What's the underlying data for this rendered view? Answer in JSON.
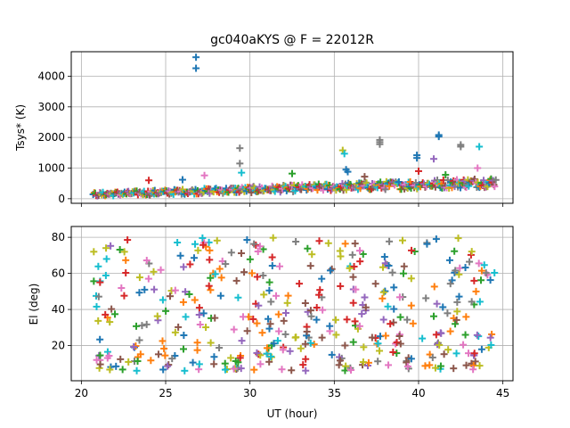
{
  "chart_data": [
    {
      "type": "scatter",
      "title": "gc040aKYS @ F = 22012R",
      "xlabel": "",
      "ylabel": "Tsys* (K)",
      "xlim": [
        19.4,
        45.6
      ],
      "ylim": [
        -150,
        4800
      ],
      "xticks": [
        20,
        25,
        30,
        35,
        40,
        45
      ],
      "yticks": [
        0,
        1000,
        2000,
        3000,
        4000
      ],
      "xtick_labels_visible": false,
      "grid": true,
      "marker": "plus",
      "spikes": [
        {
          "x": 26.8,
          "y": 4620,
          "color": "#1f77b4"
        },
        {
          "x": 26.8,
          "y": 4260,
          "color": "#1f77b4"
        },
        {
          "x": 29.4,
          "y": 1650,
          "color": "#7f7f7f"
        },
        {
          "x": 29.4,
          "y": 1150,
          "color": "#7f7f7f"
        },
        {
          "x": 29.5,
          "y": 850,
          "color": "#17becf"
        },
        {
          "x": 35.5,
          "y": 1580,
          "color": "#bcbd22"
        },
        {
          "x": 35.6,
          "y": 1470,
          "color": "#17becf"
        },
        {
          "x": 35.7,
          "y": 950,
          "color": "#1f77b4"
        },
        {
          "x": 35.8,
          "y": 880,
          "color": "#1f77b4"
        },
        {
          "x": 37.7,
          "y": 1920,
          "color": "#7f7f7f"
        },
        {
          "x": 37.7,
          "y": 1850,
          "color": "#7f7f7f"
        },
        {
          "x": 37.7,
          "y": 1780,
          "color": "#7f7f7f"
        },
        {
          "x": 39.9,
          "y": 1420,
          "color": "#1f77b4"
        },
        {
          "x": 39.9,
          "y": 1330,
          "color": "#1f77b4"
        },
        {
          "x": 41.2,
          "y": 2080,
          "color": "#1f77b4"
        },
        {
          "x": 41.2,
          "y": 2030,
          "color": "#1f77b4"
        },
        {
          "x": 42.5,
          "y": 1760,
          "color": "#7f7f7f"
        },
        {
          "x": 42.5,
          "y": 1700,
          "color": "#7f7f7f"
        },
        {
          "x": 43.6,
          "y": 1700,
          "color": "#17becf"
        },
        {
          "x": 43.5,
          "y": 1000,
          "color": "#e377c2"
        },
        {
          "x": 40.9,
          "y": 1300,
          "color": "#9467bd"
        },
        {
          "x": 26.0,
          "y": 620,
          "color": "#1f77b4"
        },
        {
          "x": 27.3,
          "y": 760,
          "color": "#e377c2"
        },
        {
          "x": 32.5,
          "y": 820,
          "color": "#2ca02c"
        },
        {
          "x": 24.0,
          "y": 600,
          "color": "#d62728"
        },
        {
          "x": 40.0,
          "y": 900,
          "color": "#d62728"
        },
        {
          "x": 41.6,
          "y": 780,
          "color": "#2ca02c"
        },
        {
          "x": 36.8,
          "y": 720,
          "color": "#8c564b"
        }
      ]
    },
    {
      "type": "scatter",
      "title": "",
      "xlabel": "UT (hour)",
      "ylabel": "El (deg)",
      "xlim": [
        19.4,
        45.6
      ],
      "ylim": [
        0.5,
        86
      ],
      "xticks": [
        20,
        25,
        30,
        35,
        40,
        45
      ],
      "yticks": [
        20,
        40,
        60,
        80
      ],
      "grid": true,
      "marker": "plus",
      "notes_seed": 7
    }
  ],
  "series_colors": [
    "#1f77b4",
    "#ff7f0e",
    "#2ca02c",
    "#d62728",
    "#9467bd",
    "#8c564b",
    "#e377c2",
    "#7f7f7f",
    "#bcbd22",
    "#17becf"
  ],
  "axis_color": "#000000",
  "grid_color": "#b0b0b0"
}
